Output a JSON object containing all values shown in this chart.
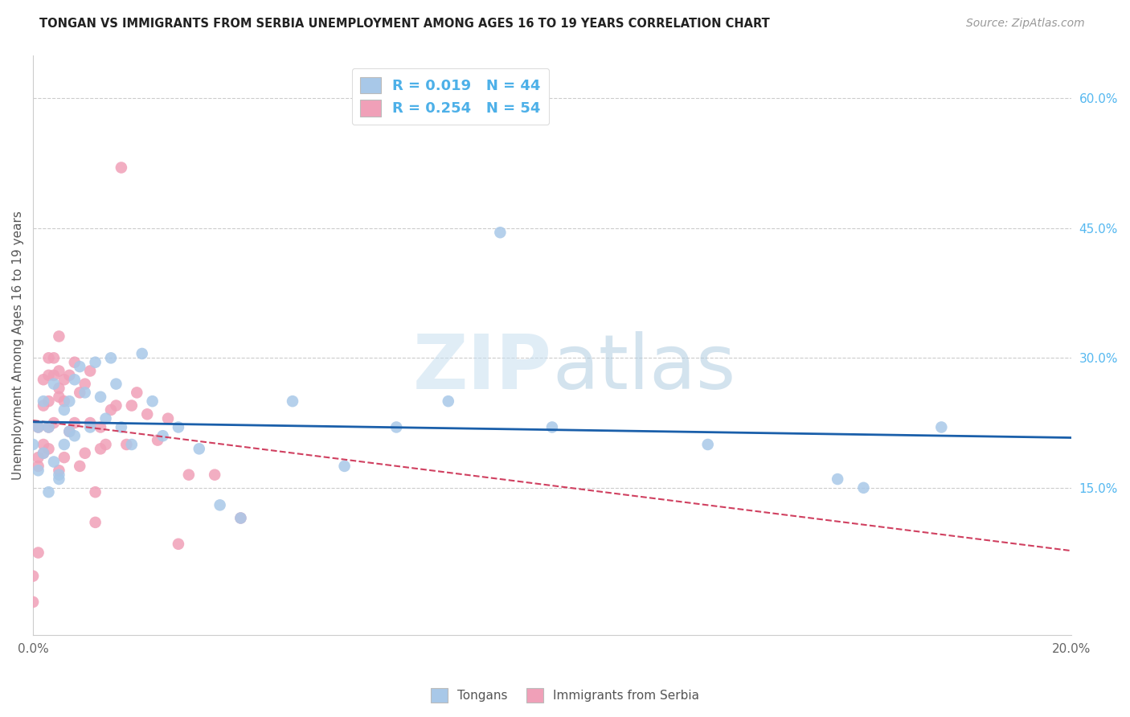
{
  "title": "TONGAN VS IMMIGRANTS FROM SERBIA UNEMPLOYMENT AMONG AGES 16 TO 19 YEARS CORRELATION CHART",
  "source": "Source: ZipAtlas.com",
  "ylabel": "Unemployment Among Ages 16 to 19 years",
  "xlim": [
    0.0,
    0.2
  ],
  "ylim": [
    -0.02,
    0.65
  ],
  "x_ticks": [
    0.0,
    0.04,
    0.08,
    0.12,
    0.16,
    0.2
  ],
  "x_tick_labels": [
    "0.0%",
    "",
    "",
    "",
    "",
    "20.0%"
  ],
  "y_ticks_right": [
    0.0,
    0.15,
    0.3,
    0.45,
    0.6
  ],
  "y_tick_labels_right": [
    "",
    "15.0%",
    "30.0%",
    "45.0%",
    "60.0%"
  ],
  "color_tongan": "#a8c8e8",
  "color_serbia": "#f0a0b8",
  "color_line_tongan": "#1a5faa",
  "color_line_serbia": "#d04060",
  "watermark_color": "#cce4f4",
  "tongan_x": [
    0.0,
    0.001,
    0.001,
    0.002,
    0.002,
    0.003,
    0.003,
    0.004,
    0.004,
    0.005,
    0.005,
    0.006,
    0.006,
    0.007,
    0.007,
    0.008,
    0.008,
    0.009,
    0.01,
    0.011,
    0.012,
    0.013,
    0.014,
    0.015,
    0.016,
    0.017,
    0.019,
    0.021,
    0.023,
    0.025,
    0.028,
    0.032,
    0.036,
    0.04,
    0.05,
    0.06,
    0.07,
    0.08,
    0.09,
    0.1,
    0.13,
    0.155,
    0.16,
    0.175
  ],
  "tongan_y": [
    0.2,
    0.17,
    0.22,
    0.19,
    0.25,
    0.145,
    0.22,
    0.18,
    0.27,
    0.165,
    0.16,
    0.2,
    0.24,
    0.25,
    0.215,
    0.21,
    0.275,
    0.29,
    0.26,
    0.22,
    0.295,
    0.255,
    0.23,
    0.3,
    0.27,
    0.22,
    0.2,
    0.305,
    0.25,
    0.21,
    0.22,
    0.195,
    0.13,
    0.115,
    0.25,
    0.175,
    0.22,
    0.25,
    0.445,
    0.22,
    0.2,
    0.16,
    0.15,
    0.22
  ],
  "serbia_x": [
    0.0,
    0.0,
    0.001,
    0.001,
    0.001,
    0.001,
    0.002,
    0.002,
    0.002,
    0.002,
    0.003,
    0.003,
    0.003,
    0.003,
    0.003,
    0.004,
    0.004,
    0.004,
    0.005,
    0.005,
    0.005,
    0.005,
    0.005,
    0.006,
    0.006,
    0.006,
    0.007,
    0.007,
    0.008,
    0.008,
    0.009,
    0.009,
    0.01,
    0.01,
    0.011,
    0.011,
    0.012,
    0.012,
    0.013,
    0.013,
    0.014,
    0.015,
    0.016,
    0.017,
    0.018,
    0.019,
    0.02,
    0.022,
    0.024,
    0.026,
    0.028,
    0.03,
    0.035,
    0.04
  ],
  "serbia_y": [
    0.048,
    0.018,
    0.175,
    0.185,
    0.22,
    0.075,
    0.19,
    0.2,
    0.245,
    0.275,
    0.195,
    0.22,
    0.25,
    0.28,
    0.3,
    0.225,
    0.28,
    0.3,
    0.17,
    0.255,
    0.265,
    0.285,
    0.325,
    0.185,
    0.25,
    0.275,
    0.215,
    0.28,
    0.225,
    0.295,
    0.175,
    0.26,
    0.19,
    0.27,
    0.225,
    0.285,
    0.145,
    0.11,
    0.22,
    0.195,
    0.2,
    0.24,
    0.245,
    0.52,
    0.2,
    0.245,
    0.26,
    0.235,
    0.205,
    0.23,
    0.085,
    0.165,
    0.165,
    0.115
  ]
}
